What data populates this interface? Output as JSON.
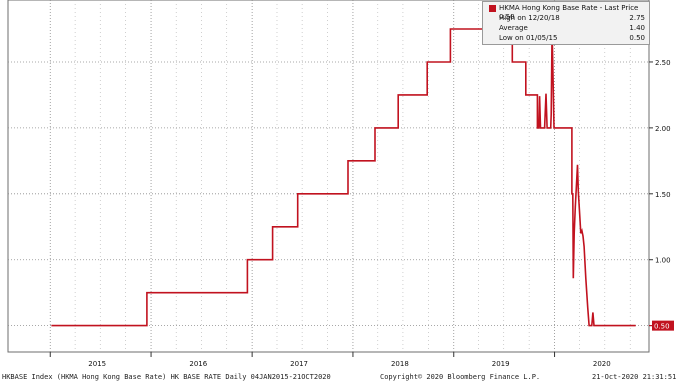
{
  "chart_data": {
    "type": "line",
    "title": "",
    "xlabel": "",
    "ylabel": "",
    "ylim": [
      0.3,
      2.97
    ],
    "y_ticks": [
      "0.50",
      "1.00",
      "1.50",
      "2.00",
      "2.50"
    ],
    "x_ticks": [
      "2015",
      "2016",
      "2017",
      "2018",
      "2019",
      "2020"
    ],
    "grid": true,
    "last_value_label": "0.50",
    "legend": {
      "placement": "top-right",
      "title": "HKMA Hong Kong Base Rate - Last Price 0.50",
      "rows": [
        {
          "label": "High on 12/20/18",
          "value": "2.75"
        },
        {
          "label": "Average",
          "value": "1.40"
        },
        {
          "label": "Low on 01/05/15",
          "value": "0.50"
        }
      ]
    },
    "series": [
      {
        "color": "#c1121f",
        "points": [
          [
            "2015-01-05",
            0.5
          ],
          [
            "2015-12-17",
            0.5
          ],
          [
            "2015-12-17",
            0.75
          ],
          [
            "2016-12-15",
            0.75
          ],
          [
            "2016-12-15",
            1.0
          ],
          [
            "2017-03-16",
            1.0
          ],
          [
            "2017-03-16",
            1.25
          ],
          [
            "2017-06-15",
            1.25
          ],
          [
            "2017-06-15",
            1.5
          ],
          [
            "2017-12-14",
            1.5
          ],
          [
            "2017-12-14",
            1.75
          ],
          [
            "2018-03-22",
            1.75
          ],
          [
            "2018-03-22",
            2.0
          ],
          [
            "2018-06-14",
            2.0
          ],
          [
            "2018-06-14",
            2.25
          ],
          [
            "2018-09-27",
            2.25
          ],
          [
            "2018-09-27",
            2.5
          ],
          [
            "2018-12-20",
            2.5
          ],
          [
            "2018-12-20",
            2.75
          ],
          [
            "2019-08-01",
            2.75
          ],
          [
            "2019-08-01",
            2.5
          ],
          [
            "2019-09-19",
            2.5
          ],
          [
            "2019-09-19",
            2.25
          ],
          [
            "2019-10-31",
            2.25
          ],
          [
            "2019-10-31",
            2.0
          ],
          [
            "2019-11-05",
            2.0
          ],
          [
            "2019-11-08",
            2.24
          ],
          [
            "2019-11-11",
            2.0
          ],
          [
            "2019-11-26",
            2.0
          ],
          [
            "2019-12-01",
            2.26
          ],
          [
            "2019-12-05",
            2.0
          ],
          [
            "2019-12-18",
            2.0
          ],
          [
            "2019-12-20",
            2.1
          ],
          [
            "2019-12-23",
            2.75
          ],
          [
            "2019-12-30",
            2.0
          ],
          [
            "2020-02-14",
            2.0
          ],
          [
            "2020-03-04",
            2.0
          ],
          [
            "2020-03-04",
            1.5
          ],
          [
            "2020-03-07",
            1.5
          ],
          [
            "2020-03-09",
            0.86
          ],
          [
            "2020-03-12",
            1.2
          ],
          [
            "2020-03-16",
            1.4
          ],
          [
            "2020-03-20",
            1.56
          ],
          [
            "2020-03-24",
            1.72
          ],
          [
            "2020-03-27",
            1.52
          ],
          [
            "2020-03-31",
            1.38
          ],
          [
            "2020-04-05",
            1.2
          ],
          [
            "2020-04-09",
            1.22
          ],
          [
            "2020-04-13",
            1.18
          ],
          [
            "2020-04-17",
            1.1
          ],
          [
            "2020-04-23",
            0.86
          ],
          [
            "2020-04-30",
            0.64
          ],
          [
            "2020-05-05",
            0.5
          ],
          [
            "2020-05-15",
            0.5
          ],
          [
            "2020-05-19",
            0.6
          ],
          [
            "2020-05-23",
            0.5
          ],
          [
            "2020-10-21",
            0.5
          ]
        ]
      }
    ]
  },
  "footer": {
    "left": "HKBASE Index (HKMA Hong Kong Base Rate) HK BASE RATE  Daily 04JAN2015-21OCT2020",
    "center": "Copyright© 2020 Bloomberg Finance L.P.",
    "right": "21-Oct-2020 21:31:51"
  }
}
